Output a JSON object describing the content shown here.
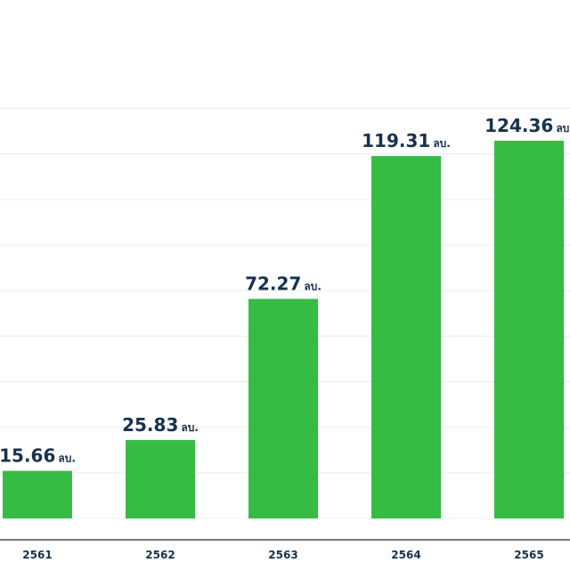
{
  "chart_data": {
    "type": "bar",
    "categories": [
      "2561",
      "2562",
      "2563",
      "2564",
      "2565"
    ],
    "values": [
      15.66,
      25.83,
      72.27,
      119.31,
      124.36
    ],
    "value_labels": [
      "15.66",
      "25.83",
      "72.27",
      "119.31",
      "124.36"
    ],
    "value_unit": "ลบ.",
    "title": "",
    "xlabel": "",
    "ylabel": "",
    "ylim": [
      0,
      125
    ],
    "grid": true,
    "colors": {
      "bar": "#36bb45",
      "label": "#17324d",
      "grid": "#e9ecef",
      "axis": "#1f2d3d"
    }
  }
}
